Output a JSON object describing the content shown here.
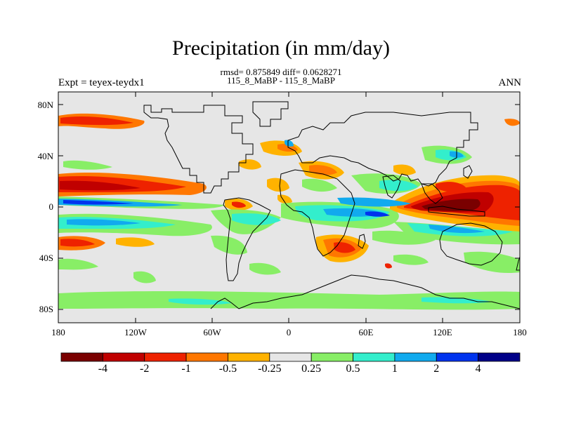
{
  "title": "Precipitation (in mm/day)",
  "stats_line": "rmsd= 0.875849 diff= 0.0628271",
  "cases_line": "115_8_MaBP - 115_8_MaBP",
  "experiment": "Expt = teyex-teydx1",
  "season": "ANN",
  "lat_ticks": [
    "80N",
    "40N",
    "0",
    "40S",
    "80S"
  ],
  "lon_ticks": [
    "180",
    "120W",
    "60W",
    "0",
    "60E",
    "120E",
    "180"
  ],
  "colorbar": {
    "labels": [
      "-4",
      "-2",
      "-1",
      "-0.5",
      "-0.25",
      "0.25",
      "0.5",
      "1",
      "2",
      "4"
    ],
    "colors": [
      "#7a0000",
      "#c00000",
      "#ee2200",
      "#ff7700",
      "#ffb200",
      "#e6e6e6",
      "#88ee66",
      "#33eecc",
      "#11aaee",
      "#0033ee",
      "#000088"
    ]
  },
  "map_colors": {
    "background": "#e6e6e6",
    "coast": "#000000"
  }
}
